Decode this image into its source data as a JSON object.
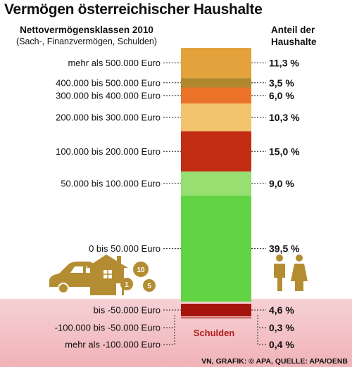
{
  "title": "Vermögen österreichischer Haushalte",
  "header_left": {
    "line1": "Nettovermögensklassen 2010",
    "line2": "(Sach-, Finanzvermögen, Schulden)"
  },
  "header_right": {
    "line1": "Anteil der",
    "line2": "Haushalte"
  },
  "debt_label": "Schulden",
  "source": "VN, GRAFIK: © APA, QUELLE: APA/OENB",
  "icon_coins": [
    "10",
    "1",
    "5"
  ],
  "chart_data": {
    "type": "bar",
    "title": "Vermögen österreichischer Haushalte",
    "xlabel": "Nettovermögensklassen 2010",
    "ylabel": "Anteil der Haushalte",
    "unit": "%",
    "stacked": true,
    "categories": [
      "mehr als 500.000 Euro",
      "400.000 bis 500.000 Euro",
      "300.000 bis 400.000 Euro",
      "200.000 bis 300.000 Euro",
      "100.000 bis 200.000 Euro",
      "50.000 bis 100.000 Euro",
      "0 bis 50.000 Euro",
      "bis -50.000 Euro",
      "-100.000 bis -50.000 Euro",
      "mehr als -100.000 Euro"
    ],
    "values": [
      11.3,
      3.5,
      6.0,
      10.3,
      15.0,
      9.0,
      39.5,
      4.6,
      0.3,
      0.4
    ],
    "value_labels": [
      "11,3 %",
      "3,5 %",
      "6,0 %",
      "10,3 %",
      "15,0 %",
      "9,0 %",
      "39,5 %",
      "4,6 %",
      "0,3 %",
      "0,4 %"
    ],
    "colors": [
      "#e4a23c",
      "#b0892c",
      "#ea7329",
      "#f2c46e",
      "#c32d12",
      "#96df70",
      "#62d343",
      "#a5150e",
      "#a5150e",
      "#a5150e"
    ],
    "debt_group": [
      "bis -50.000 Euro",
      "-100.000 bis -50.000 Euro",
      "mehr als -100.000 Euro"
    ]
  }
}
